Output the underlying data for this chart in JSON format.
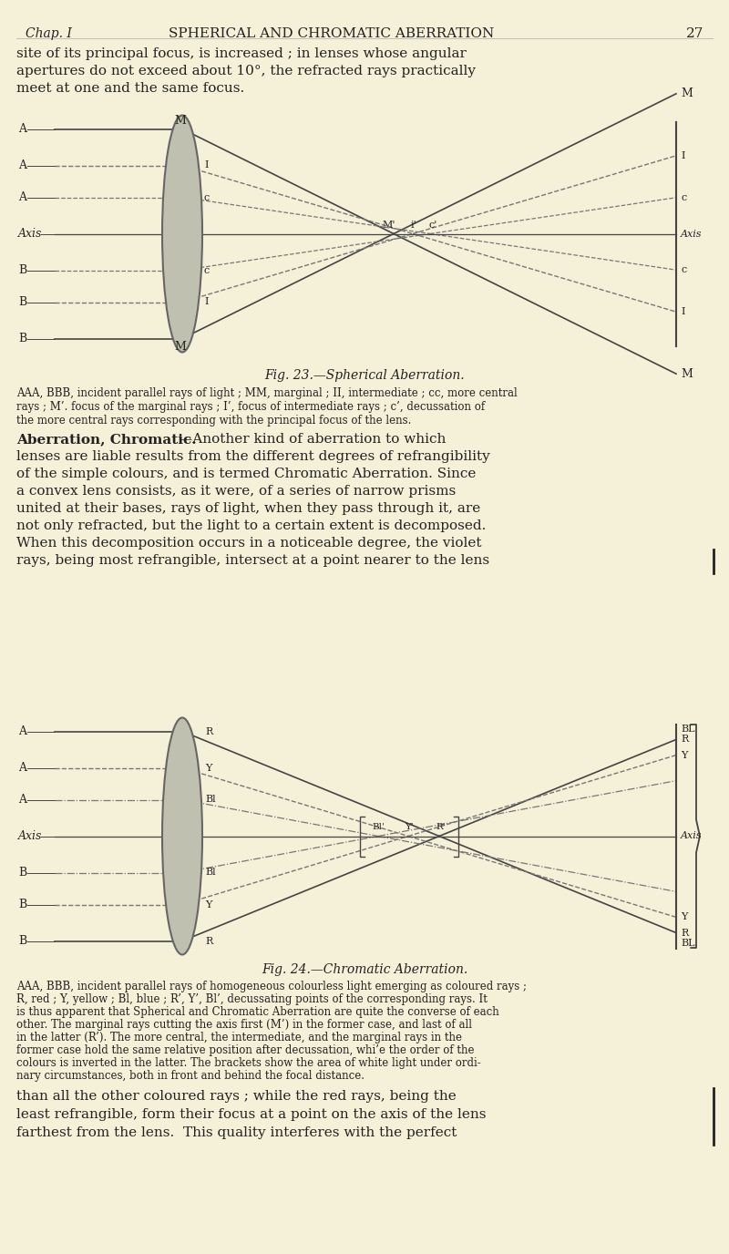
{
  "bg_color": "#f5f0d8",
  "text_color": "#222222",
  "header_chap": "Chap. I",
  "header_title": "SPHERICAL AND CHROMATIC ABERRATION",
  "header_page": "27",
  "intro_text": "site of its principal focus, is increased ; in lenses whose angular\napertures do not exceed about 10°, the refracted rays practically\nmeet at one and the same focus.",
  "fig1_caption": "Fig. 23.—Spherical Aberration.",
  "fig1_caption2": "AAA, BBB, incident parallel rays of light ; MM, marginal ; II, intermediate ; cc, more central\nrays ; M’. focus of the marginal rays ; I’, focus of intermediate rays ; c’, decussation of\nthe more central rays corresponding with the principal focus of the lens.",
  "aberration_bold": "Aberration, Chromatic.",
  "aberration_rest": "—Another kind of aberration to which\nlenses are liable results from the different degrees of refrangibility\nof the simple colours, and is termed Chromatic Aberration. Since\na convex lens consists, as it were, of a series of narrow prisms\nunited at their bases, rays of light, when they pass through it, are\nnot only refracted, but the light to a certain extent is decomposed.\nWhen this decomposition occurs in a noticeable degree, the violet\nrays, being most refrangible, intersect at a point nearer to the lens",
  "fig2_caption": "Fig. 24.—Chromatic Aberration.",
  "fig2_caption2": "AAA, BBB, incident parallel rays of homogeneous colourless light emerging as coloured rays ;\nR, red ; Y, yellow ; Bl, blue ; R’, Y’, Bl’, decussating points of the corresponding rays. It\nis thus apparent that Spherical and Chromatic Aberration are quite the converse of each\nother. The marginal rays cutting the axis first (M’) in the former case, and last of all\nin the latter (R’). The more central, the intermediate, and the marginal rays in the\nformer case hold the same relative position after decussation, whi’e the order of the\ncolours is inverted in the latter. The brackets show the area of white light under ordi-\nnary circumstances, both in front and behind the focal distance.",
  "final_text": "than all the other coloured rays ; while the red rays, being the\nleast refrangible, form their focus at a point on the axis of the lens\nfarthest from the lens.  This quality interferes with the perfect",
  "lens_face": "#c0c0b0",
  "lens_edge": "#666666",
  "line_solid": "#444444",
  "line_dash": "#777777"
}
